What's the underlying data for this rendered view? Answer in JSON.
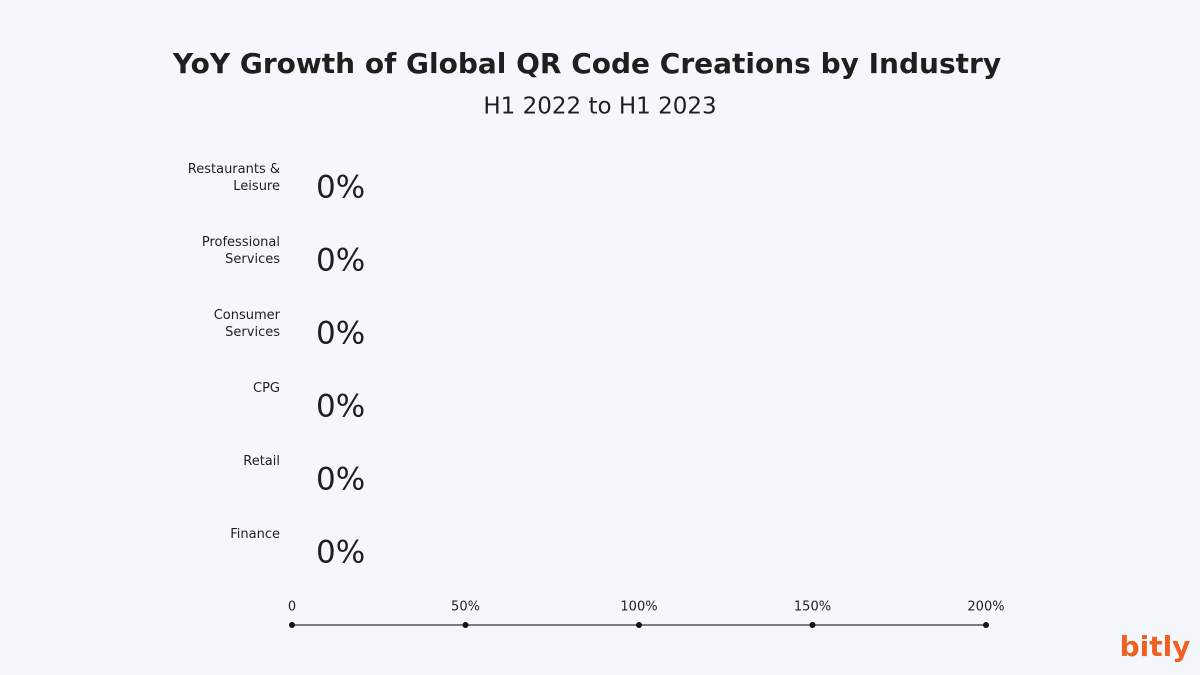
{
  "chart_data": {
    "type": "hbar",
    "title": "YoY Growth of Global QR Code Creations by Industry",
    "subtitle": "H1 2022 to H1 2023",
    "categories": [
      "Restaurants & Leisure",
      "Professional Services",
      "Consumer Services",
      "CPG",
      "Retail",
      "Finance"
    ],
    "values": [
      0,
      0,
      0,
      0,
      0,
      0
    ],
    "value_labels": [
      "0%",
      "0%",
      "0%",
      "0%",
      "0%",
      "0%"
    ],
    "color": "#ee6123",
    "xlim": [
      0,
      200
    ],
    "xticks": [
      0,
      {
        "value": 50,
        "label": "50%"
      },
      {
        "value": 100,
        "label": "100%"
      },
      {
        "value": 150,
        "label": "150%"
      },
      {
        "value": 200,
        "label": "200%"
      }
    ],
    "logo": "bitly"
  }
}
